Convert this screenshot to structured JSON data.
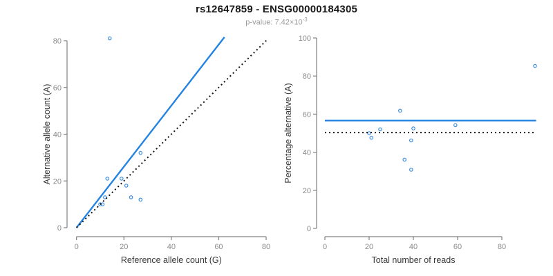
{
  "header": {
    "title": "rs12647859 - ENSG00000184305",
    "p_value_text": "p-value: 7.42×10",
    "p_value_exponent": "-3"
  },
  "colors": {
    "blue_line": "#2383e2",
    "blue_point": "#3f8fdf",
    "black": "#151515",
    "axis": "#808080",
    "tick_label": "#8a8a8a",
    "axis_title": "#383838"
  },
  "chart_data": [
    {
      "id": "allele-counts",
      "type": "scatter",
      "xlabel": "Reference allele count (G)",
      "ylabel": "Alternative allele count (A)",
      "xticks": [
        0,
        20,
        40,
        60,
        80
      ],
      "yticks": [
        0,
        20,
        40,
        60,
        80
      ],
      "xlim": [
        0,
        81
      ],
      "ylim": [
        0,
        81.5
      ],
      "grid": false,
      "points": [
        [
          14,
          81
        ],
        [
          13,
          21
        ],
        [
          19,
          21
        ],
        [
          21,
          18
        ],
        [
          12,
          13
        ],
        [
          23,
          13
        ],
        [
          27,
          12
        ],
        [
          27,
          32
        ],
        [
          10,
          10
        ],
        [
          11,
          10
        ]
      ],
      "lines": [
        {
          "name": "fit-line",
          "style": "solid",
          "color_key": "blue_line",
          "slope": 1.31,
          "from": [
            0,
            0
          ],
          "to": [
            62.4,
            81.5
          ]
        },
        {
          "name": "identity-line",
          "style": "dotted",
          "color_key": "black",
          "slope": 1,
          "from": [
            0,
            0
          ],
          "to": [
            80.5,
            80.5
          ]
        }
      ]
    },
    {
      "id": "percentage-vs-reads",
      "type": "scatter",
      "xlabel": "Total number of reads",
      "ylabel": "Percentage alternative (A)",
      "xticks": [
        0,
        20,
        40,
        60,
        80
      ],
      "yticks": [
        0,
        20,
        40,
        60,
        80,
        100
      ],
      "xlim": [
        0,
        95.5
      ],
      "ylim": [
        0,
        100
      ],
      "grid": false,
      "points": [
        [
          95,
          85.3
        ],
        [
          59,
          54.2
        ],
        [
          40,
          52.5
        ],
        [
          39,
          46.2
        ],
        [
          36,
          36.1
        ],
        [
          39,
          30.8
        ],
        [
          34,
          61.8
        ],
        [
          25,
          52
        ],
        [
          21,
          47.6
        ],
        [
          20,
          50
        ]
      ],
      "lines": [
        {
          "name": "mean-percentage-line",
          "style": "solid",
          "color_key": "blue_line",
          "value": 56.6,
          "from": [
            0,
            56.6
          ],
          "to": [
            95.5,
            56.6
          ]
        },
        {
          "name": "reference-50-line",
          "style": "dotted",
          "color_key": "black",
          "value": 50,
          "from": [
            0,
            50.3
          ],
          "to": [
            95.5,
            50.3
          ]
        }
      ]
    }
  ]
}
